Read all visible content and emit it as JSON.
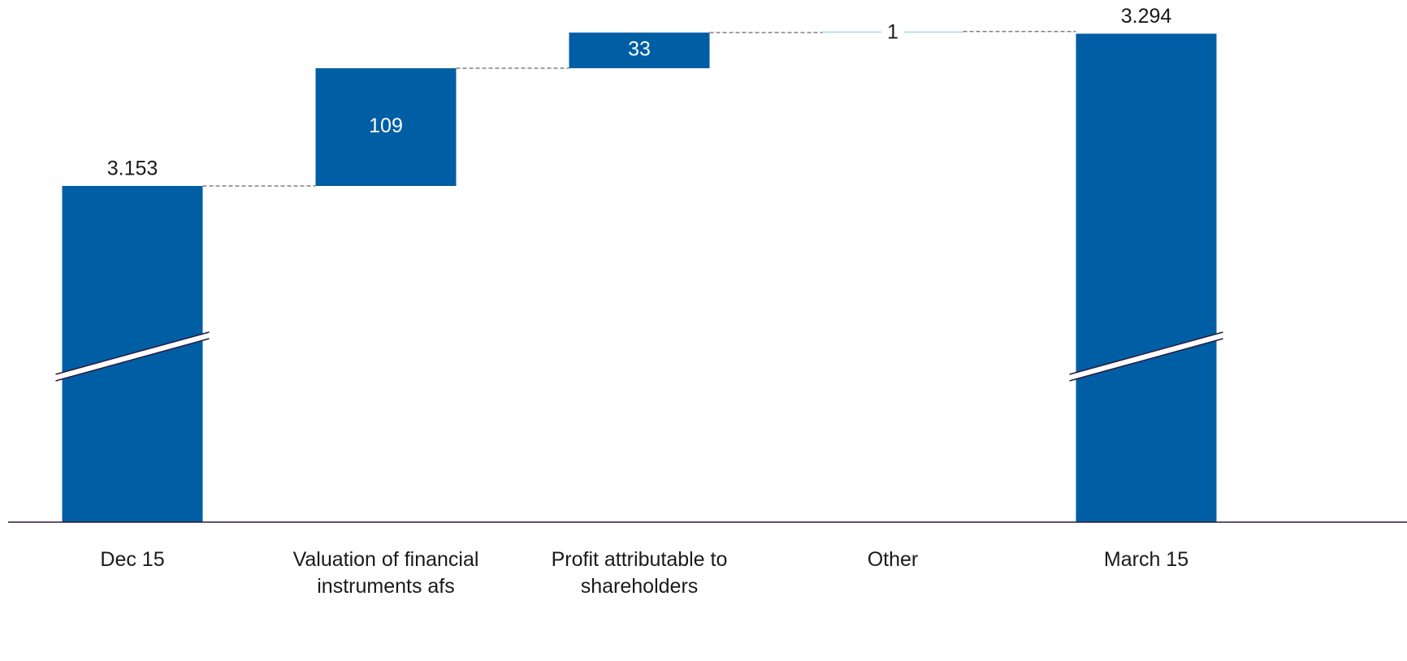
{
  "chart_data": {
    "type": "waterfall",
    "categories": [
      "Dec 15",
      "Valuation of financial instruments afs",
      "Profit attributable to shareholders",
      "Other",
      "March 15"
    ],
    "values": [
      3153,
      109,
      33,
      1,
      3294
    ],
    "value_labels": [
      "3.153",
      "109",
      "33",
      "1",
      "3.294"
    ],
    "measures": [
      "absolute",
      "relative",
      "relative",
      "relative",
      "total"
    ],
    "color": "#005ea5",
    "axis_break": true
  }
}
